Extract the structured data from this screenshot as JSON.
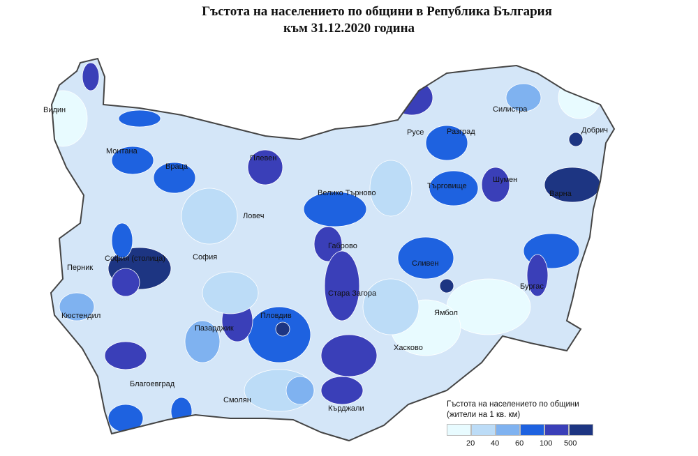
{
  "title": {
    "line1": "Гъстота на населението по общини в Република България",
    "line2": "към 31.12.2020 година"
  },
  "legend": {
    "title": "Гъстота на населението по общини",
    "subtitle": "(жители  на 1 кв. км)",
    "bins": [
      {
        "color": "#e8fbff"
      },
      {
        "color": "#bcdcf7"
      },
      {
        "color": "#7fb2f0"
      },
      {
        "color": "#1e62e0"
      },
      {
        "color": "#3a3fb8"
      },
      {
        "color": "#1d3582"
      }
    ],
    "ticks": [
      "20",
      "40",
      "60",
      "100",
      "500"
    ]
  },
  "cities": [
    "Видин",
    "Монтана",
    "Враца",
    "Плевен",
    "Русе",
    "Силистра",
    "Разград",
    "Добрич",
    "Шумен",
    "Търговище",
    "Варна",
    "Велико Търново",
    "Ловеч",
    "Габрово",
    "София (столица)",
    "София",
    "Перник",
    "Сливен",
    "Бургас",
    "Ямбол",
    "Стара Загора",
    "Кюстендил",
    "Пазарджик",
    "Пловдив",
    "Хасково",
    "Благоевград",
    "Смолян",
    "Кърджали"
  ]
}
